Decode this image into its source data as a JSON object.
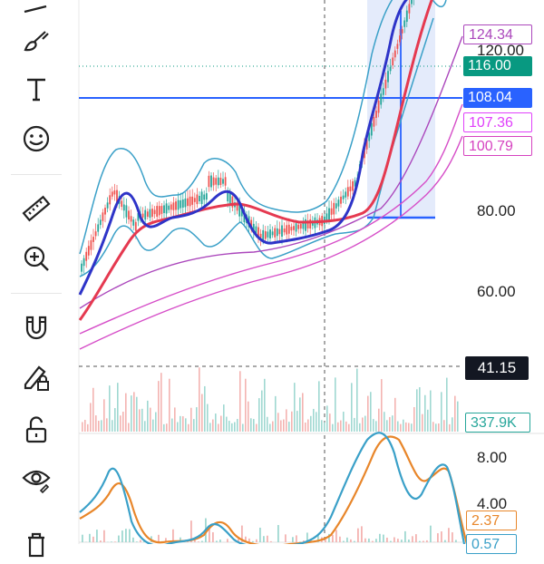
{
  "toolbar": {
    "items": [
      {
        "name": "lines-tool-icon"
      },
      {
        "name": "brush-tool-icon"
      },
      {
        "name": "text-tool-icon"
      },
      {
        "name": "emoji-tool-icon"
      },
      {
        "name": "ruler-tool-icon"
      },
      {
        "name": "zoom-in-tool-icon"
      },
      {
        "name": "magnet-tool-icon"
      },
      {
        "name": "lock-drawing-tool-icon"
      },
      {
        "name": "unlock-tool-icon"
      },
      {
        "name": "eye-visibility-tool-icon"
      },
      {
        "name": "trash-tool-icon"
      }
    ]
  },
  "price_axis": {
    "labels": [
      "120.00",
      "80.00",
      "60.00"
    ]
  },
  "price_tags": {
    "tag_124": {
      "text": "124.34",
      "color": "#ab47bc"
    },
    "tag_116": {
      "text": "116.00",
      "color": "#089981"
    },
    "tag_108": {
      "text": "108.04",
      "color": "#2962ff"
    },
    "tag_107": {
      "text": "107.36",
      "color": "#e040fb"
    },
    "tag_100": {
      "text": "100.79",
      "color": "#d642c0"
    }
  },
  "volume": {
    "crosshair_value": "41.15",
    "last_volume": "337.9K",
    "last_volume_color": "#26a69a"
  },
  "oscillator": {
    "axis_labels": [
      "8.00",
      "4.00"
    ],
    "tag_value_orange": "2.37",
    "tag_value_blue": "0.57"
  },
  "colors": {
    "ma_fast": "#2e34c8",
    "ma_slow": "#e53950",
    "bollinger": "#3aa0c8",
    "ma_pink": "#d64ec8",
    "fib_fill": "#dbe4fa",
    "horizontal_line": "#2962ff"
  }
}
